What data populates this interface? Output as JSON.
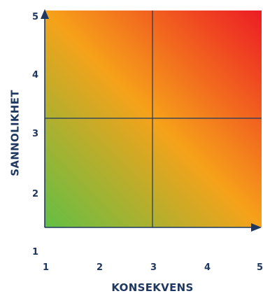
{
  "y_axis": {
    "title": "SANNOLIKHET",
    "ticks": [
      "1",
      "2",
      "3",
      "4",
      "5"
    ]
  },
  "x_axis": {
    "title": "KONSEKVENS",
    "ticks": [
      "1",
      "2",
      "3",
      "4",
      "5"
    ]
  },
  "colors": {
    "axis": "#1f3860",
    "gradient_low": "#62bf45",
    "gradient_mid": "#f6a21a",
    "gradient_high": "#ec1c24"
  }
}
